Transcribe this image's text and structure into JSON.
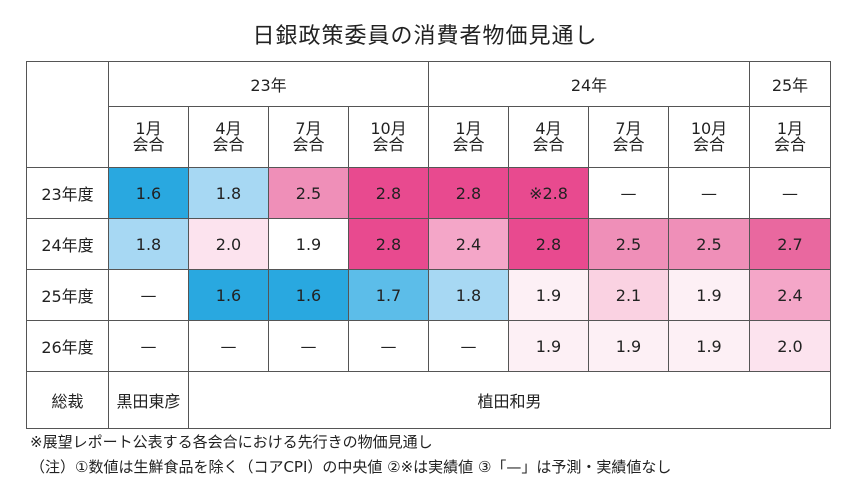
{
  "title": "日銀政策委員の消費者物価見通し",
  "years": [
    {
      "label": "23年",
      "span": 4
    },
    {
      "label": "24年",
      "span": 4
    },
    {
      "label": "25年",
      "span": 1
    }
  ],
  "meetings": [
    {
      "month": "1月",
      "suffix": "会合"
    },
    {
      "month": "4月",
      "suffix": "会合"
    },
    {
      "month": "7月",
      "suffix": "会合"
    },
    {
      "month": "10月",
      "suffix": "会合"
    },
    {
      "month": "1月",
      "suffix": "会合"
    },
    {
      "month": "4月",
      "suffix": "会合"
    },
    {
      "month": "7月",
      "suffix": "会合"
    },
    {
      "month": "10月",
      "suffix": "会合"
    },
    {
      "month": "1月",
      "suffix": "会合"
    }
  ],
  "rows": [
    {
      "label": "23年度",
      "cells": [
        {
          "text": "1.6",
          "color": "#29a8e0"
        },
        {
          "text": "1.8",
          "color": "#a7d8f3"
        },
        {
          "text": "2.5",
          "color": "#ef8fb8"
        },
        {
          "text": "2.8",
          "color": "#e84a8f"
        },
        {
          "text": "2.8",
          "color": "#e84a8f"
        },
        {
          "text": "※2.8",
          "color": "#e84a8f"
        },
        {
          "text": "—",
          "color": "#ffffff"
        },
        {
          "text": "—",
          "color": "#ffffff"
        },
        {
          "text": "—",
          "color": "#ffffff"
        }
      ]
    },
    {
      "label": "24年度",
      "cells": [
        {
          "text": "1.8",
          "color": "#a7d8f3"
        },
        {
          "text": "2.0",
          "color": "#fce3ee"
        },
        {
          "text": "1.9",
          "color": "#ffffff"
        },
        {
          "text": "2.8",
          "color": "#e84a8f"
        },
        {
          "text": "2.4",
          "color": "#f4a6c8"
        },
        {
          "text": "2.8",
          "color": "#e84a8f"
        },
        {
          "text": "2.5",
          "color": "#ef8fb8"
        },
        {
          "text": "2.5",
          "color": "#ef8fb8"
        },
        {
          "text": "2.7",
          "color": "#e9689f"
        }
      ]
    },
    {
      "label": "25年度",
      "cells": [
        {
          "text": "—",
          "color": "#ffffff"
        },
        {
          "text": "1.6",
          "color": "#29a8e0"
        },
        {
          "text": "1.6",
          "color": "#29a8e0"
        },
        {
          "text": "1.7",
          "color": "#5cbde9"
        },
        {
          "text": "1.8",
          "color": "#a7d8f3"
        },
        {
          "text": "1.9",
          "color": "#fdf0f5"
        },
        {
          "text": "2.1",
          "color": "#fad2e2"
        },
        {
          "text": "1.9",
          "color": "#fdf0f5"
        },
        {
          "text": "2.4",
          "color": "#f4a6c8"
        }
      ]
    },
    {
      "label": "26年度",
      "cells": [
        {
          "text": "—",
          "color": "#ffffff"
        },
        {
          "text": "—",
          "color": "#ffffff"
        },
        {
          "text": "—",
          "color": "#ffffff"
        },
        {
          "text": "—",
          "color": "#ffffff"
        },
        {
          "text": "—",
          "color": "#ffffff"
        },
        {
          "text": "1.9",
          "color": "#fdf0f5"
        },
        {
          "text": "1.9",
          "color": "#fdf0f5"
        },
        {
          "text": "1.9",
          "color": "#fdf0f5"
        },
        {
          "text": "2.0",
          "color": "#fce3ee"
        }
      ]
    }
  ],
  "president": {
    "label": "総裁",
    "names": [
      {
        "text": "黒田東彦",
        "span": 1
      },
      {
        "text": "植田和男",
        "span": 8
      }
    ]
  },
  "footnotes": [
    "※展望レポート公表する各会合における先行きの物価見通し",
    "（注）①数値は生鮮食品を除く（コアCPI）の中央値 ②※は実績値 ③「—」は予測・実績値なし"
  ]
}
